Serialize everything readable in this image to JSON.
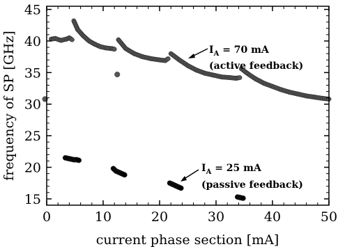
{
  "chart_data": {
    "type": "scatter",
    "xlabel": "current phase section  [mA]",
    "ylabel": "frequency of SP  [GHz]",
    "xlim": [
      0,
      50
    ],
    "ylim": [
      14,
      45.5
    ],
    "xticks": [
      0,
      10,
      20,
      30,
      40,
      50
    ],
    "yticks": [
      15,
      20,
      25,
      30,
      35,
      40,
      45
    ],
    "grid": false,
    "series": [
      {
        "name": "I_A = 70 mA (active feedback)",
        "color": "#555555",
        "segments": [
          {
            "x": [
              0.8,
              1.5,
              2.5,
              3.5,
              4.0,
              4.5
            ],
            "y": [
              40.3,
              40.4,
              40.1,
              40.3,
              40.5,
              40.2
            ]
          },
          {
            "x": [
              4.8,
              5.5,
              6.5,
              7.5,
              8.5,
              9.5,
              10.5,
              11.5,
              12.0
            ],
            "y": [
              43.2,
              41.8,
              40.8,
              40.0,
              39.5,
              39.1,
              38.9,
              38.8,
              38.7
            ]
          },
          {
            "x": [
              12.7,
              14.0,
              15.5,
              17.0,
              18.5,
              20.0,
              21.0,
              21.5
            ],
            "y": [
              40.2,
              38.8,
              38.0,
              37.5,
              37.2,
              37.0,
              36.9,
              37.2
            ]
          },
          {
            "x": [
              22.0,
              23.5,
              25.0,
              26.5,
              28.0,
              29.5,
              31.0,
              32.5,
              33.5,
              34.2
            ],
            "y": [
              38.0,
              37.0,
              36.1,
              35.4,
              34.9,
              34.6,
              34.3,
              34.2,
              34.1,
              34.2
            ]
          },
          {
            "x": [
              34.5,
              35.5,
              37.0,
              38.5,
              40.0,
              41.5,
              43.0,
              44.5,
              46.0,
              47.5,
              49.0,
              50.0
            ],
            "y": [
              35.6,
              34.9,
              34.0,
              33.3,
              32.8,
              32.3,
              31.9,
              31.6,
              31.3,
              31.1,
              30.9,
              30.8
            ]
          }
        ],
        "points": [
          {
            "x": -0.3,
            "y": 30.8
          },
          {
            "x": 12.5,
            "y": 34.7
          }
        ]
      },
      {
        "name": "I_A = 25 mA (passive feedback)",
        "color": "#000000",
        "segments": [
          {
            "x": [
              3.3,
              3.8,
              4.3,
              4.8,
              5.3,
              5.7
            ],
            "y": [
              21.5,
              21.4,
              21.3,
              21.2,
              21.2,
              21.1
            ]
          },
          {
            "x": [
              11.8,
              12.3,
              12.8,
              13.3,
              13.8
            ],
            "y": [
              19.8,
              19.4,
              19.2,
              19.0,
              18.8
            ]
          },
          {
            "x": [
              21.8,
              22.3,
              22.8,
              23.3,
              23.8
            ],
            "y": [
              17.5,
              17.3,
              17.1,
              16.9,
              16.7
            ]
          },
          {
            "x": [
              33.8,
              34.3,
              34.8
            ],
            "y": [
              15.3,
              15.2,
              15.1
            ]
          }
        ],
        "points": []
      }
    ],
    "annotations": [
      {
        "main": "I",
        "sub": "A",
        "rest": " = 70 mA",
        "line2": "(active feedback)"
      },
      {
        "main": "I",
        "sub": "A",
        "rest": " = 25 mA",
        "line2": "(passive feedback)"
      }
    ]
  }
}
